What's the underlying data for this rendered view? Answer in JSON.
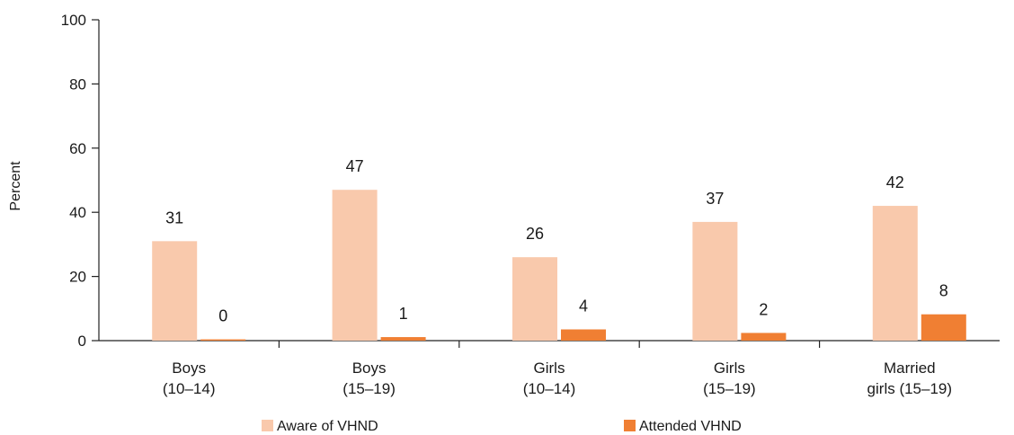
{
  "chart_data": {
    "type": "bar",
    "title": "",
    "xlabel": "",
    "ylabel": "Percent",
    "ylim": [
      0,
      100
    ],
    "yticks": [
      0,
      20,
      40,
      60,
      80,
      100
    ],
    "grid": false,
    "legend_position": "bottom",
    "categories": [
      [
        "Boys",
        "(10–14)"
      ],
      [
        "Boys",
        "(15–19)"
      ],
      [
        "Girls",
        "(10–14)"
      ],
      [
        "Girls",
        "(15–19)"
      ],
      [
        "Married",
        "girls (15–19)"
      ]
    ],
    "series": [
      {
        "name": "Aware of VHND",
        "color": "#F9C9AC",
        "values": [
          31,
          47,
          26,
          37,
          42
        ],
        "labels": [
          "31",
          "47",
          "26",
          "37",
          "42"
        ]
      },
      {
        "name": "Attended VHND",
        "color": "#F07F33",
        "values": [
          0.4,
          1.1,
          3.5,
          2.4,
          8.2
        ],
        "labels": [
          "0",
          "1",
          "4",
          "2",
          "8"
        ]
      }
    ]
  }
}
